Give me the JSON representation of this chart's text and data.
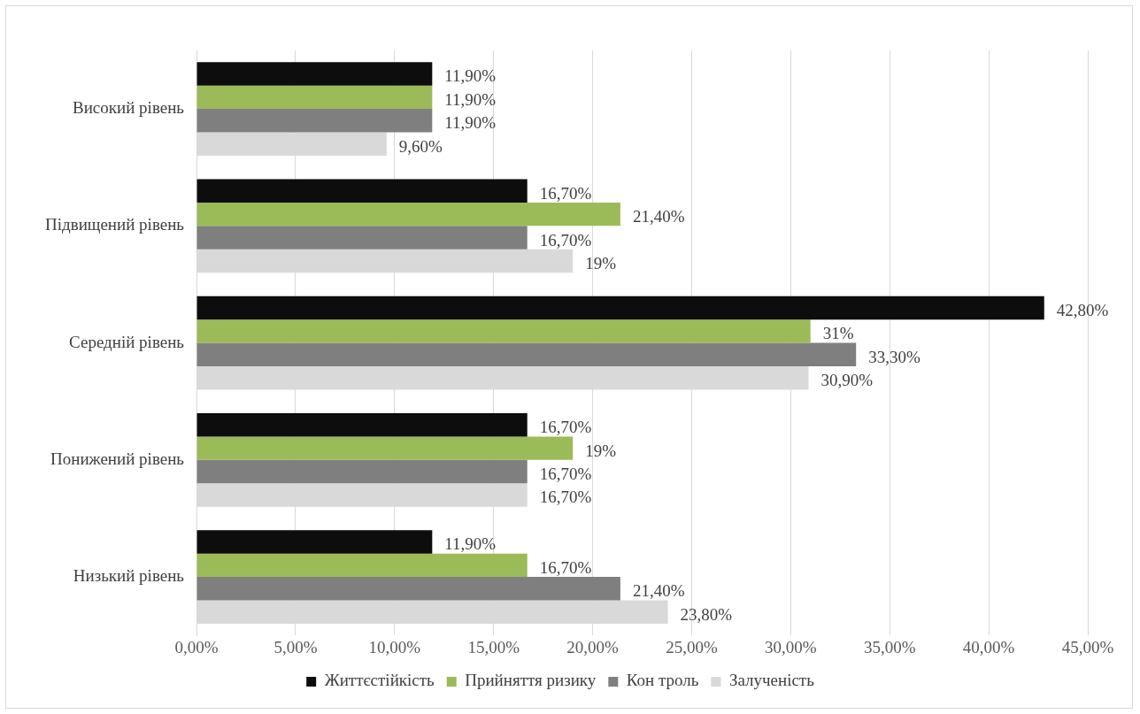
{
  "chart_data": {
    "type": "bar",
    "orientation": "horizontal",
    "categories": [
      "Високий рівень",
      "Підвищений рівень",
      "Середній рівень",
      "Понижений рівень",
      "Низький рівень"
    ],
    "series": [
      {
        "name": "Життєстійкість",
        "color": "#0d0d0d",
        "values": [
          11.9,
          16.7,
          42.8,
          16.7,
          11.9
        ],
        "value_labels": [
          "11,90%",
          "16,70%",
          "42,80%",
          "16,70%",
          "11,90%"
        ]
      },
      {
        "name": "Прийняття ризику",
        "color": "#9bbb59",
        "values": [
          11.9,
          21.4,
          31,
          19,
          16.7
        ],
        "value_labels": [
          "11,90%",
          "21,40%",
          "31%",
          "19%",
          "16,70%"
        ]
      },
      {
        "name": "Кон троль",
        "color": "#7f7f7f",
        "values": [
          11.9,
          16.7,
          33.3,
          16.7,
          21.4
        ],
        "value_labels": [
          "11,90%",
          "16,70%",
          "33,30%",
          "16,70%",
          "21,40%"
        ]
      },
      {
        "name": "Залученість",
        "color": "#d9d9d9",
        "values": [
          9.6,
          19,
          30.9,
          16.7,
          23.8
        ],
        "value_labels": [
          "9,60%",
          "19%",
          "30,90%",
          "16,70%",
          "23,80%"
        ]
      }
    ],
    "xlim": [
      0,
      45
    ],
    "xticks": [
      {
        "value": 0,
        "label": "0,00%"
      },
      {
        "value": 5,
        "label": "5,00%"
      },
      {
        "value": 10,
        "label": "10,00%"
      },
      {
        "value": 15,
        "label": "15,00%"
      },
      {
        "value": 20,
        "label": "20,00%"
      },
      {
        "value": 25,
        "label": "25,00%"
      },
      {
        "value": 30,
        "label": "30,00%"
      },
      {
        "value": 35,
        "label": "35,00%"
      },
      {
        "value": 40,
        "label": "40,00%"
      },
      {
        "value": 45,
        "label": "45,00%"
      }
    ],
    "grid": "x",
    "legend": "bottom"
  }
}
